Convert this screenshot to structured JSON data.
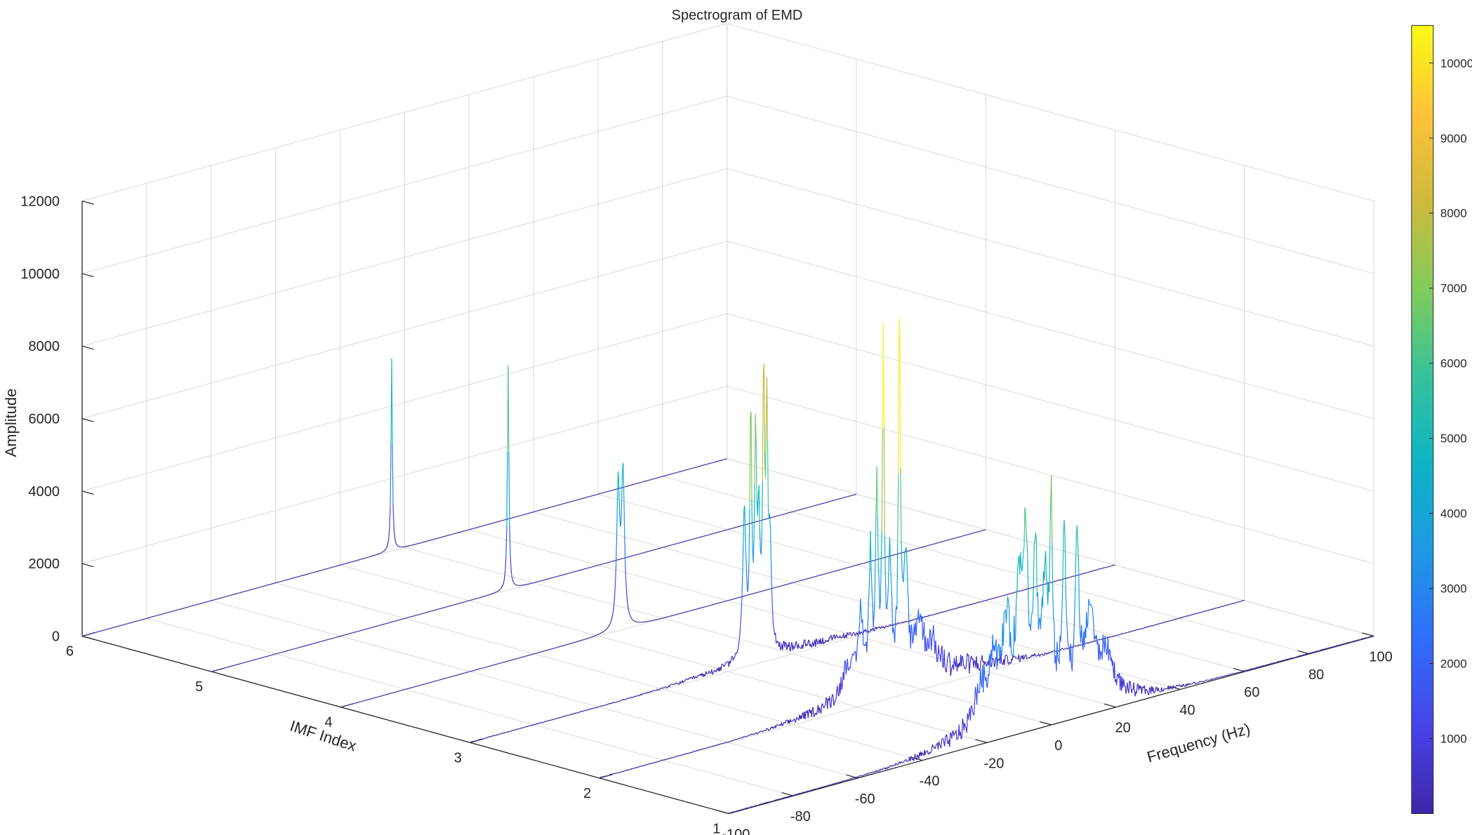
{
  "chart_data": {
    "type": "waterfall-3d-line",
    "title": "Spectrogram of EMD",
    "xlabel": "Frequency (Hz)",
    "ylabel": "IMF Index",
    "zlabel": "Amplitude",
    "xlim": [
      -100,
      100
    ],
    "ylim": [
      1,
      6
    ],
    "zlim": [
      0,
      12000
    ],
    "x_ticks": [
      -100,
      -80,
      -60,
      -40,
      -20,
      0,
      20,
      40,
      60,
      80,
      100
    ],
    "y_ticks": [
      1,
      2,
      3,
      4,
      5,
      6
    ],
    "z_ticks": [
      0,
      2000,
      4000,
      6000,
      8000,
      10000,
      12000
    ],
    "grid": true,
    "colormap": "parula",
    "colorbar": {
      "limits": [
        0,
        10500
      ],
      "ticks": [
        1000,
        2000,
        3000,
        4000,
        5000,
        6000,
        7000,
        8000,
        9000,
        10000
      ],
      "colors": [
        "#3e26a8",
        "#4743ea",
        "#2f6efc",
        "#1e99e4",
        "#0cb4c5",
        "#37c29b",
        "#81cc59",
        "#d0ba3c",
        "#fec338",
        "#f9fb15"
      ]
    },
    "series": [
      {
        "imf": 1,
        "noise": 480,
        "peaks": [
          {
            "f": -22,
            "amp": 1000,
            "w": 2.4
          },
          {
            "f": -18,
            "amp": 1600,
            "w": 1.6
          },
          {
            "f": -14,
            "amp": 2400,
            "w": 1.4
          },
          {
            "f": -10,
            "amp": 3100,
            "w": 1.2
          },
          {
            "f": -8,
            "amp": 4400,
            "w": 0.8
          },
          {
            "f": -5,
            "amp": 3800,
            "w": 0.8
          },
          {
            "f": -2,
            "amp": 3100,
            "w": 1.0
          },
          {
            "f": 0,
            "amp": 4700,
            "w": 0.5
          },
          {
            "f": 4,
            "amp": 4800,
            "w": 0.6
          },
          {
            "f": 8,
            "amp": 4000,
            "w": 0.7
          },
          {
            "f": 12,
            "amp": 2300,
            "w": 1.5
          },
          {
            "f": 17,
            "amp": 1200,
            "w": 2.5
          }
        ]
      },
      {
        "imf": 2,
        "noise": 380,
        "peaks": [
          {
            "f": -23,
            "amp": 900,
            "w": 2.0
          },
          {
            "f": -19,
            "amp": 2000,
            "w": 0.9
          },
          {
            "f": -16,
            "amp": 3500,
            "w": 0.5
          },
          {
            "f": -14,
            "amp": 5000,
            "w": 0.5
          },
          {
            "f": -12,
            "amp": 9300,
            "w": 0.35
          },
          {
            "f": -10,
            "amp": 3200,
            "w": 0.6
          },
          {
            "f": -7,
            "amp": 9800,
            "w": 0.35
          },
          {
            "f": -5,
            "amp": 3000,
            "w": 0.7
          },
          {
            "f": -1,
            "amp": 1400,
            "w": 1.5
          },
          {
            "f": 3,
            "amp": 700,
            "w": 2.0
          }
        ]
      },
      {
        "imf": 3,
        "noise": 120,
        "peaks": [
          {
            "f": -15,
            "amp": 4000,
            "w": 0.6
          },
          {
            "f": -13,
            "amp": 6600,
            "w": 0.35
          },
          {
            "f": -11.5,
            "amp": 5800,
            "w": 0.35
          },
          {
            "f": -10.5,
            "amp": 3400,
            "w": 0.4
          },
          {
            "f": -9,
            "amp": 7200,
            "w": 0.35
          },
          {
            "f": -8,
            "amp": 6200,
            "w": 0.35
          },
          {
            "f": -7,
            "amp": 2800,
            "w": 0.5
          }
        ]
      },
      {
        "imf": 4,
        "noise": 0,
        "peaks": [
          {
            "f": -14,
            "amp": 3900,
            "w": 0.55
          },
          {
            "f": -12.5,
            "amp": 4200,
            "w": 0.55
          }
        ]
      },
      {
        "imf": 5,
        "noise": 0,
        "peaks": [
          {
            "f": -8,
            "amp": 6200,
            "w": 0.28
          }
        ]
      },
      {
        "imf": 6,
        "noise": 0,
        "peaks": [
          {
            "f": -4,
            "amp": 5300,
            "w": 0.25
          }
        ]
      }
    ]
  }
}
